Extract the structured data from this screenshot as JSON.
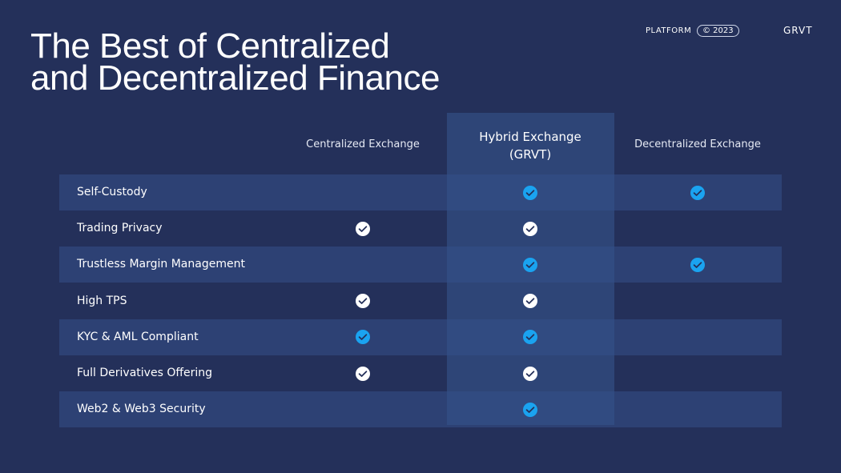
{
  "header": {
    "section": "PLATFORM",
    "copyright": "© 2023",
    "brand": "GRVT"
  },
  "title": {
    "lines": [
      "The Best of Centralized",
      "and Decentralized Finance"
    ]
  },
  "table": {
    "columns": [
      {
        "lines": [
          "Centralized Exchange"
        ]
      },
      {
        "lines": [
          "Hybrid Exchange",
          "(GRVT)"
        ]
      },
      {
        "lines": [
          "Decentralized Exchange"
        ]
      }
    ],
    "rows": [
      {
        "label": "Self-Custody",
        "checks": [
          false,
          true,
          true
        ]
      },
      {
        "label": "Trading Privacy",
        "checks": [
          true,
          true,
          false
        ]
      },
      {
        "label": "Trustless Margin Management",
        "checks": [
          false,
          true,
          true
        ]
      },
      {
        "label": "High TPS",
        "checks": [
          true,
          true,
          false
        ]
      },
      {
        "label": "KYC & AML Compliant",
        "checks": [
          true,
          true,
          false
        ]
      },
      {
        "label": "Full Derivatives Offering",
        "checks": [
          true,
          true,
          false
        ]
      },
      {
        "label": "Web2 & Web3 Security",
        "checks": [
          false,
          true,
          false
        ]
      }
    ]
  }
}
